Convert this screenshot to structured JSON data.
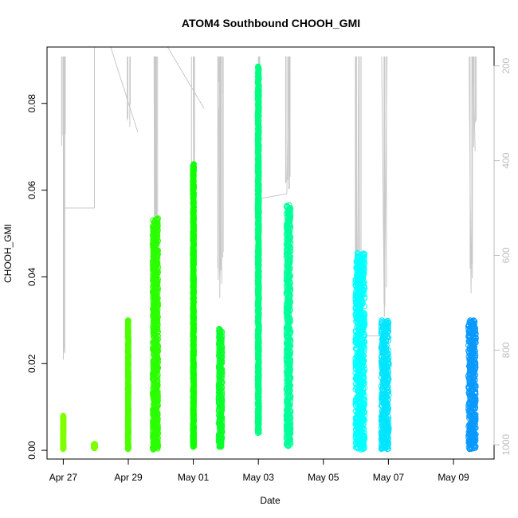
{
  "chart_data": {
    "type": "scatter",
    "title": "ATOM4 Southbound CHOOH_GMI",
    "xlabel": "Date",
    "ylabel": "CHOOH_GMI",
    "x_is_date": true,
    "xlim": [
      "2017-04-26T12:00",
      "2017-05-10T06:00"
    ],
    "ylim": [
      -0.002,
      0.093
    ],
    "x_ticks": [
      {
        "value": "2017-04-27T00:00",
        "label": "Apr 27"
      },
      {
        "value": "2017-04-29T00:00",
        "label": "Apr 29"
      },
      {
        "value": "2017-05-01T00:00",
        "label": "May 01"
      },
      {
        "value": "2017-05-03T00:00",
        "label": "May 03"
      },
      {
        "value": "2017-05-05T00:00",
        "label": "May 05"
      },
      {
        "value": "2017-05-07T00:00",
        "label": "May 07"
      },
      {
        "value": "2017-05-09T00:00",
        "label": "May 09"
      }
    ],
    "y_ticks": [
      0.0,
      0.02,
      0.04,
      0.06,
      0.08
    ],
    "y_tick_labels": [
      "0.00",
      "0.02",
      "0.04",
      "0.06",
      "0.08"
    ],
    "right_axis": {
      "quantity": "pressure",
      "reversed": true,
      "lim": [
        1030,
        160
      ],
      "ticks": [
        200,
        400,
        600,
        800,
        1000
      ],
      "color": "#bdbdbd"
    },
    "grid": false,
    "legend": "none",
    "profile_line_color": "#c8c8c8",
    "series": [
      {
        "start": "2017-04-26T23:45",
        "end": "2017-04-27T00:15",
        "ymin": 0.0003,
        "ymax": 0.008,
        "color": "#80ff00",
        "pressure_path": [
          [
            "2017-04-27T00:00",
            180
          ],
          [
            "2017-04-27T00:05",
            820
          ],
          [
            "2017-04-27T00:08",
            400
          ]
        ]
      },
      {
        "start": "2017-04-27T22:30",
        "end": "2017-04-27T23:30",
        "ymin": 0.0005,
        "ymax": 0.0015,
        "color": "#7fff00",
        "pressure_path": []
      },
      {
        "start": "2017-04-28T23:40",
        "end": "2017-04-29T00:10",
        "ymin": 0.0003,
        "ymax": 0.03,
        "color": "#4dff00",
        "pressure_path": [
          [
            "2017-04-29T00:00",
            340
          ]
        ]
      },
      {
        "start": "2017-04-29T18:00",
        "end": "2017-04-29T22:00",
        "ymin": 0.0002,
        "ymax": 0.0535,
        "color": "#2bff00",
        "pressure_path": [
          [
            "2017-04-29T19:00",
            180
          ],
          [
            "2017-04-29T19:30",
            730
          ],
          [
            "2017-04-29T20:30",
            180
          ],
          [
            "2017-04-29T21:00",
            560
          ]
        ]
      },
      {
        "start": "2017-04-30T23:40",
        "end": "2017-05-01T00:30",
        "ymin": 0.0008,
        "ymax": 0.066,
        "color": "#11ff00",
        "pressure_path": [
          [
            "2017-05-01T00:00",
            180
          ],
          [
            "2017-05-01T00:20",
            600
          ],
          [
            "2017-05-01T00:30",
            180
          ]
        ]
      },
      {
        "start": "2017-05-01T18:40",
        "end": "2017-05-01T21:20",
        "ymin": 0.0008,
        "ymax": 0.028,
        "color": "#0bff2a",
        "pressure_path": [
          [
            "2017-05-01T19:00",
            290
          ],
          [
            "2017-05-01T19:30",
            690
          ],
          [
            "2017-05-01T20:30",
            250
          ],
          [
            "2017-05-01T21:00",
            660
          ]
        ]
      },
      {
        "start": "2017-05-02T23:30",
        "end": "2017-05-03T00:30",
        "ymin": 0.004,
        "ymax": 0.0885,
        "color": "#00ff80",
        "pressure_path": [
          [
            "2017-05-03T00:00",
            180
          ],
          [
            "2017-05-03T00:20",
            480
          ]
        ]
      },
      {
        "start": "2017-05-03T20:40",
        "end": "2017-05-03T23:50",
        "ymin": 0.001,
        "ymax": 0.0565,
        "color": "#00ff99",
        "pressure_path": [
          [
            "2017-05-03T21:00",
            470
          ],
          [
            "2017-05-03T22:30",
            180
          ],
          [
            "2017-05-03T23:00",
            460
          ]
        ]
      },
      {
        "start": "2017-05-05T23:40",
        "end": "2017-05-06T06:30",
        "ymin": 0.0002,
        "ymax": 0.0455,
        "color": "#00ffff",
        "pressure_path": [
          [
            "2017-05-06T00:00",
            180
          ],
          [
            "2017-05-06T01:00",
            790
          ],
          [
            "2017-05-06T02:00",
            180
          ],
          [
            "2017-05-06T03:00",
            770
          ]
        ]
      },
      {
        "start": "2017-05-06T18:40",
        "end": "2017-05-07T00:20",
        "ymin": 0.0003,
        "ymax": 0.03,
        "color": "#00e5ff",
        "pressure_path": [
          [
            "2017-05-06T19:00",
            180
          ],
          [
            "2017-05-06T21:00",
            730
          ],
          [
            "2017-05-06T23:00",
            180
          ]
        ]
      },
      {
        "start": "2017-05-09T11:00",
        "end": "2017-05-09T16:30",
        "ymin": 0.0003,
        "ymax": 0.03,
        "color": "#0a99ff",
        "pressure_path": [
          [
            "2017-05-09T11:30",
            180
          ],
          [
            "2017-05-09T13:00",
            680
          ],
          [
            "2017-05-09T14:30",
            180
          ],
          [
            "2017-05-09T16:00",
            380
          ]
        ]
      }
    ]
  }
}
